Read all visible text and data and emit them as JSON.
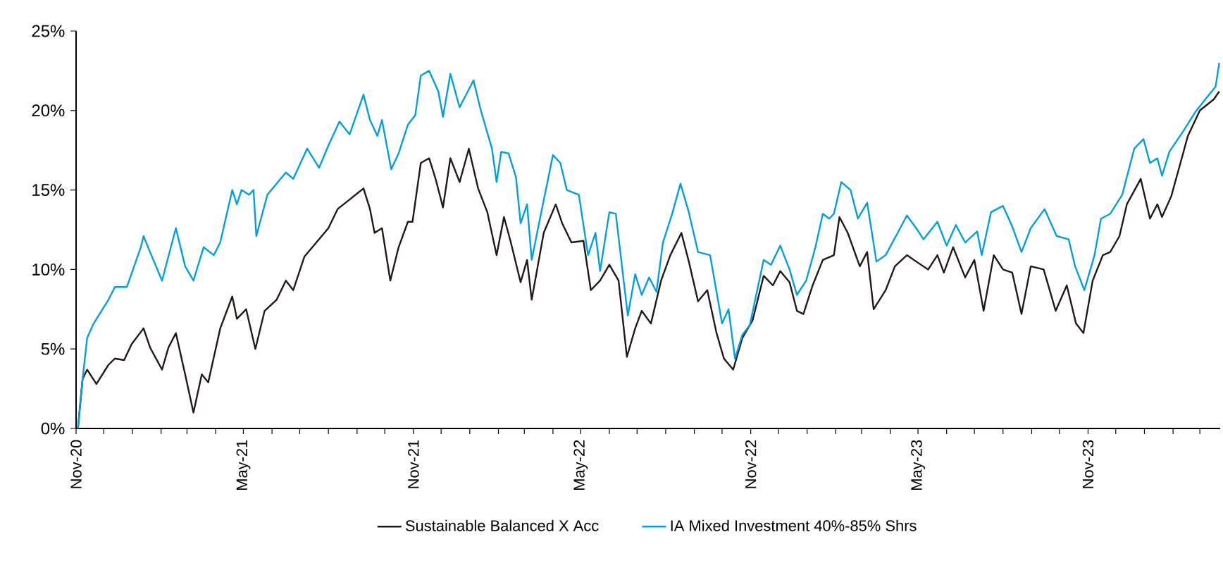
{
  "chart_data": {
    "type": "line",
    "legend": "bottom",
    "grid": false,
    "line_style": "solid",
    "marker": "none",
    "ylim": [
      0,
      25
    ],
    "yticks": [
      {
        "value": 0,
        "label": "0%"
      },
      {
        "value": 5,
        "label": "5%"
      },
      {
        "value": 10,
        "label": "10%"
      },
      {
        "value": 15,
        "label": "15%"
      },
      {
        "value": 20,
        "label": "20%"
      },
      {
        "value": 25,
        "label": "25%"
      }
    ],
    "xlim": [
      "2020-11-01",
      "2024-03-23"
    ],
    "xticks": [
      {
        "value": "2020-11-01",
        "label": "Nov-20"
      },
      {
        "value": "2020-12-01",
        "label": null
      },
      {
        "value": "2021-01-01",
        "label": null
      },
      {
        "value": "2021-02-01",
        "label": null
      },
      {
        "value": "2021-03-01",
        "label": null
      },
      {
        "value": "2021-04-01",
        "label": null
      },
      {
        "value": "2021-05-01",
        "label": "May-21"
      },
      {
        "value": "2021-06-01",
        "label": null
      },
      {
        "value": "2021-07-01",
        "label": null
      },
      {
        "value": "2021-08-01",
        "label": null
      },
      {
        "value": "2021-09-01",
        "label": null
      },
      {
        "value": "2021-10-01",
        "label": null
      },
      {
        "value": "2021-11-01",
        "label": "Nov-21"
      },
      {
        "value": "2021-12-01",
        "label": null
      },
      {
        "value": "2022-01-01",
        "label": null
      },
      {
        "value": "2022-02-01",
        "label": null
      },
      {
        "value": "2022-03-01",
        "label": null
      },
      {
        "value": "2022-04-01",
        "label": null
      },
      {
        "value": "2022-05-01",
        "label": "May-22"
      },
      {
        "value": "2022-06-01",
        "label": null
      },
      {
        "value": "2022-07-01",
        "label": null
      },
      {
        "value": "2022-08-01",
        "label": null
      },
      {
        "value": "2022-09-01",
        "label": null
      },
      {
        "value": "2022-10-01",
        "label": null
      },
      {
        "value": "2022-11-01",
        "label": "Nov-22"
      },
      {
        "value": "2022-12-01",
        "label": null
      },
      {
        "value": "2023-01-01",
        "label": null
      },
      {
        "value": "2023-02-01",
        "label": null
      },
      {
        "value": "2023-03-01",
        "label": null
      },
      {
        "value": "2023-04-01",
        "label": null
      },
      {
        "value": "2023-05-01",
        "label": "May-23"
      },
      {
        "value": "2023-06-01",
        "label": null
      },
      {
        "value": "2023-07-01",
        "label": null
      },
      {
        "value": "2023-08-01",
        "label": null
      },
      {
        "value": "2023-09-01",
        "label": null
      },
      {
        "value": "2023-10-01",
        "label": null
      },
      {
        "value": "2023-11-01",
        "label": "Nov-23"
      },
      {
        "value": "2023-12-01",
        "label": null
      },
      {
        "value": "2024-01-01",
        "label": null
      },
      {
        "value": "2024-02-01",
        "label": null
      },
      {
        "value": "2024-03-01",
        "label": null
      }
    ],
    "series": [
      {
        "name": "Sustainable Balanced X Acc",
        "color": "#231815",
        "x": [
          "2020-11-03",
          "2020-11-08",
          "2020-11-13",
          "2020-11-23",
          "2020-12-06",
          "2020-12-13",
          "2020-12-23",
          "2020-12-31",
          "2021-01-13",
          "2021-01-20",
          "2021-02-02",
          "2021-02-09",
          "2021-02-17",
          "2021-02-27",
          "2021-03-08",
          "2021-03-17",
          "2021-03-24",
          "2021-04-06",
          "2021-04-19",
          "2021-04-24",
          "2021-05-04",
          "2021-05-14",
          "2021-05-24",
          "2021-06-06",
          "2021-06-16",
          "2021-06-24",
          "2021-07-06",
          "2021-07-19",
          "2021-08-01",
          "2021-08-11",
          "2021-08-24",
          "2021-09-08",
          "2021-09-15",
          "2021-09-20",
          "2021-09-28",
          "2021-10-07",
          "2021-10-16",
          "2021-10-26",
          "2021-10-31",
          "2021-11-09",
          "2021-11-18",
          "2021-11-25",
          "2021-12-03",
          "2021-12-11",
          "2021-12-21",
          "2021-12-31",
          "2022-01-10",
          "2022-01-20",
          "2022-01-30",
          "2022-02-07",
          "2022-02-14",
          "2022-02-25",
          "2022-03-04",
          "2022-03-09",
          "2022-03-22",
          "2022-04-04",
          "2022-04-11",
          "2022-04-21",
          "2022-05-04",
          "2022-05-12",
          "2022-05-22",
          "2022-06-01",
          "2022-06-11",
          "2022-06-20",
          "2022-06-29",
          "2022-07-06",
          "2022-07-16",
          "2022-07-27",
          "2022-08-06",
          "2022-08-18",
          "2022-08-26",
          "2022-09-05",
          "2022-09-15",
          "2022-09-25",
          "2022-10-03",
          "2022-10-13",
          "2022-10-23",
          "2022-11-03",
          "2022-11-15",
          "2022-11-25",
          "2022-12-03",
          "2022-12-13",
          "2022-12-21",
          "2022-12-28",
          "2023-01-07",
          "2023-01-18",
          "2023-01-30",
          "2023-02-05",
          "2023-02-14",
          "2023-02-27",
          "2023-03-07",
          "2023-03-14",
          "2023-03-27",
          "2023-04-06",
          "2023-04-19",
          "2023-04-29",
          "2023-05-12",
          "2023-05-22",
          "2023-05-29",
          "2023-06-08",
          "2023-06-21",
          "2023-07-01",
          "2023-07-11",
          "2023-07-22",
          "2023-08-01",
          "2023-08-11",
          "2023-08-21",
          "2023-08-31",
          "2023-09-14",
          "2023-09-27",
          "2023-10-09",
          "2023-10-19",
          "2023-10-27",
          "2023-11-06",
          "2023-11-17",
          "2023-11-25",
          "2023-12-05",
          "2023-12-13",
          "2023-12-28",
          "2024-01-07",
          "2024-01-15",
          "2024-01-20",
          "2024-01-30",
          "2024-02-09",
          "2024-02-17",
          "2024-03-01",
          "2024-03-16",
          "2024-03-22"
        ],
        "values": [
          0,
          3.1,
          3.7,
          2.8,
          4.0,
          4.4,
          4.3,
          5.3,
          6.3,
          5.1,
          3.7,
          5.1,
          6.0,
          3.4,
          1.0,
          3.4,
          2.9,
          6.3,
          8.3,
          6.9,
          7.5,
          5.0,
          7.4,
          8.1,
          9.3,
          8.7,
          10.8,
          11.7,
          12.6,
          13.8,
          14.4,
          15.1,
          13.8,
          12.3,
          12.6,
          9.3,
          11.4,
          13.0,
          13.0,
          16.7,
          17.0,
          15.7,
          13.9,
          17.0,
          15.5,
          17.6,
          15.1,
          13.6,
          10.9,
          13.3,
          11.8,
          9.2,
          10.6,
          8.1,
          12.3,
          14.1,
          12.9,
          11.7,
          11.8,
          8.7,
          9.3,
          10.3,
          9.3,
          4.5,
          6.3,
          7.4,
          6.6,
          9.3,
          10.9,
          12.3,
          10.5,
          8.0,
          8.7,
          6.0,
          4.4,
          3.7,
          5.7,
          6.8,
          9.6,
          9.0,
          9.9,
          9.2,
          7.4,
          7.2,
          9.0,
          10.6,
          10.9,
          13.3,
          12.3,
          10.2,
          11.1,
          7.5,
          8.7,
          10.2,
          10.9,
          10.5,
          10.0,
          10.9,
          9.8,
          11.4,
          9.5,
          10.6,
          7.4,
          10.9,
          10.0,
          9.8,
          7.2,
          10.2,
          10.0,
          7.4,
          9.0,
          6.6,
          6.0,
          9.3,
          10.9,
          11.1,
          12.1,
          14.1,
          15.7,
          13.2,
          14.1,
          13.3,
          14.6,
          16.7,
          18.4,
          20.0,
          20.7,
          21.2
        ]
      },
      {
        "name": "IA Mixed Investment 40%-85% Shrs",
        "color": "#009fe3",
        "x": [
          "2020-11-03",
          "2020-11-08",
          "2020-11-13",
          "2020-11-20",
          "2020-12-06",
          "2020-12-13",
          "2020-12-26",
          "2021-01-10",
          "2021-01-13",
          "2021-01-20",
          "2021-02-02",
          "2021-02-17",
          "2021-02-27",
          "2021-03-08",
          "2021-03-19",
          "2021-03-30",
          "2021-04-06",
          "2021-04-19",
          "2021-04-24",
          "2021-04-29",
          "2021-05-07",
          "2021-05-12",
          "2021-05-15",
          "2021-05-27",
          "2021-06-16",
          "2021-06-24",
          "2021-07-09",
          "2021-07-22",
          "2021-08-01",
          "2021-08-13",
          "2021-08-24",
          "2021-09-08",
          "2021-09-15",
          "2021-09-23",
          "2021-09-28",
          "2021-10-08",
          "2021-10-16",
          "2021-10-26",
          "2021-11-03",
          "2021-11-09",
          "2021-11-18",
          "2021-11-28",
          "2021-12-03",
          "2021-12-11",
          "2021-12-21",
          "2022-01-05",
          "2022-01-13",
          "2022-01-25",
          "2022-01-30",
          "2022-02-04",
          "2022-02-12",
          "2022-02-20",
          "2022-02-25",
          "2022-03-04",
          "2022-03-09",
          "2022-03-19",
          "2022-04-01",
          "2022-04-09",
          "2022-04-16",
          "2022-04-29",
          "2022-05-09",
          "2022-05-17",
          "2022-05-22",
          "2022-06-01",
          "2022-06-08",
          "2022-06-21",
          "2022-06-29",
          "2022-07-06",
          "2022-07-14",
          "2022-07-22",
          "2022-07-29",
          "2022-08-08",
          "2022-08-17",
          "2022-08-26",
          "2022-09-05",
          "2022-09-18",
          "2022-10-01",
          "2022-10-08",
          "2022-10-15",
          "2022-10-23",
          "2022-10-31",
          "2022-11-15",
          "2022-11-23",
          "2022-12-03",
          "2022-12-13",
          "2022-12-21",
          "2022-12-31",
          "2023-01-10",
          "2023-01-18",
          "2023-01-25",
          "2023-01-30",
          "2023-02-07",
          "2023-02-17",
          "2023-02-25",
          "2023-03-07",
          "2023-03-17",
          "2023-03-27",
          "2023-04-09",
          "2023-04-19",
          "2023-04-29",
          "2023-05-07",
          "2023-05-22",
          "2023-06-01",
          "2023-06-11",
          "2023-06-21",
          "2023-07-04",
          "2023-07-09",
          "2023-07-19",
          "2023-08-01",
          "2023-08-11",
          "2023-08-21",
          "2023-08-31",
          "2023-09-15",
          "2023-09-28",
          "2023-10-11",
          "2023-10-18",
          "2023-10-28",
          "2023-11-08",
          "2023-11-15",
          "2023-11-25",
          "2023-12-08",
          "2023-12-21",
          "2023-12-31",
          "2024-01-07",
          "2024-01-15",
          "2024-01-20",
          "2024-01-28",
          "2024-02-12",
          "2024-02-25",
          "2024-03-11",
          "2024-03-18",
          "2024-03-22"
        ],
        "values": [
          0,
          3.1,
          5.7,
          6.6,
          8.1,
          8.9,
          8.9,
          11.4,
          12.1,
          11.1,
          9.3,
          12.6,
          10.2,
          9.3,
          11.4,
          10.9,
          11.7,
          15.0,
          14.1,
          15.0,
          14.7,
          15.0,
          12.1,
          14.7,
          16.1,
          15.7,
          17.6,
          16.4,
          17.8,
          19.3,
          18.5,
          21.0,
          19.4,
          18.4,
          19.4,
          16.3,
          17.3,
          19.1,
          19.7,
          22.2,
          22.5,
          21.2,
          19.6,
          22.3,
          20.2,
          21.9,
          20.0,
          17.6,
          15.5,
          17.4,
          17.3,
          15.8,
          12.9,
          14.1,
          10.6,
          13.5,
          17.2,
          16.7,
          15.0,
          14.7,
          10.9,
          12.3,
          9.9,
          13.6,
          13.5,
          7.1,
          9.7,
          8.4,
          9.5,
          8.6,
          11.7,
          13.5,
          15.4,
          13.6,
          11.1,
          10.9,
          6.6,
          7.5,
          4.4,
          5.9,
          6.5,
          10.6,
          10.3,
          11.5,
          10.0,
          8.4,
          9.3,
          11.4,
          13.5,
          13.2,
          13.5,
          15.5,
          15.0,
          13.2,
          14.2,
          10.5,
          10.9,
          12.3,
          13.4,
          12.6,
          11.9,
          13.0,
          11.5,
          12.8,
          11.7,
          12.4,
          10.9,
          13.6,
          14.0,
          12.7,
          11.1,
          12.6,
          13.8,
          12.1,
          11.9,
          10.2,
          8.7,
          10.9,
          13.2,
          13.5,
          14.7,
          17.6,
          18.2,
          16.7,
          17.0,
          15.9,
          17.4,
          18.7,
          19.9,
          21.0,
          21.5,
          23.0
        ]
      }
    ]
  }
}
